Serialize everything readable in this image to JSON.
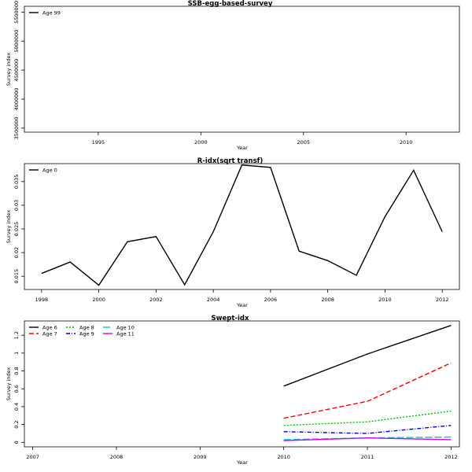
{
  "chart_data": [
    {
      "type": "line",
      "title": "SSB-egg-based-survey",
      "xlabel": "Year",
      "ylabel": "Survey index",
      "xlim": [
        1991.4,
        2012.6
      ],
      "ylim": [
        3430000,
        5600000
      ],
      "xticks": [
        1995,
        2000,
        2005,
        2010
      ],
      "yticks": [
        3500000,
        4000000,
        4500000,
        5000000,
        5500000
      ],
      "legend_position": "top-left",
      "series": [
        {
          "name": "Age 99",
          "color": "#000000",
          "dash": "",
          "x": [],
          "y": []
        }
      ]
    },
    {
      "type": "line",
      "title": "R-idx(sqrt transf)",
      "xlabel": "Year",
      "ylabel": "Survey index",
      "xlim": [
        1997.4,
        2012.6
      ],
      "ylim": [
        0.0122,
        0.0388
      ],
      "xticks": [
        1998,
        2000,
        2002,
        2004,
        2006,
        2008,
        2010,
        2012
      ],
      "yticks": [
        0.015,
        0.02,
        0.025,
        0.03,
        0.035
      ],
      "legend_position": "top-left",
      "series": [
        {
          "name": "Age 0",
          "color": "#000000",
          "dash": "",
          "x": [
            1998,
            1999,
            2000,
            2001,
            2002,
            2003,
            2004,
            2005,
            2006,
            2007,
            2008,
            2009,
            2010,
            2011,
            2012
          ],
          "y": [
            0.0156,
            0.018,
            0.0131,
            0.0223,
            0.0234,
            0.0132,
            0.0244,
            0.0385,
            0.038,
            0.0203,
            0.0183,
            0.0152,
            0.0276,
            0.0374,
            0.0244
          ]
        }
      ]
    },
    {
      "type": "line",
      "title": "Swept-idx",
      "xlabel": "Year",
      "ylabel": "Survey index",
      "xlim": [
        2006.9,
        2012.1
      ],
      "ylim": [
        -0.05,
        1.36
      ],
      "xticks": [
        2007,
        2008,
        2009,
        2010,
        2011,
        2012
      ],
      "yticks": [
        0.0,
        0.2,
        0.4,
        0.6,
        0.8,
        1.0,
        1.2
      ],
      "legend_position": "top-left",
      "series": [
        {
          "name": "Age 6",
          "color": "#000000",
          "dash": "",
          "x": [
            2010,
            2011,
            2012
          ],
          "y": [
            0.63,
            0.99,
            1.31
          ]
        },
        {
          "name": "Age 7",
          "color": "#ff0000",
          "dash": "6,3",
          "x": [
            2010,
            2011,
            2012
          ],
          "y": [
            0.27,
            0.46,
            0.89
          ]
        },
        {
          "name": "Age 8",
          "color": "#00bb00",
          "dash": "2,2",
          "x": [
            2010,
            2011,
            2012
          ],
          "y": [
            0.19,
            0.23,
            0.35
          ]
        },
        {
          "name": "Age 9",
          "color": "#0000cc",
          "dash": "5,2,1,2",
          "x": [
            2010,
            2011,
            2012
          ],
          "y": [
            0.12,
            0.1,
            0.19
          ]
        },
        {
          "name": "Age 10",
          "color": "#00cccc",
          "dash": "9,3",
          "x": [
            2010,
            2011,
            2012
          ],
          "y": [
            0.03,
            0.05,
            0.06
          ]
        },
        {
          "name": "Age 11",
          "color": "#dd00dd",
          "dash": "",
          "x": [
            2010,
            2011,
            2012
          ],
          "y": [
            0.02,
            0.05,
            0.03
          ]
        }
      ]
    }
  ]
}
